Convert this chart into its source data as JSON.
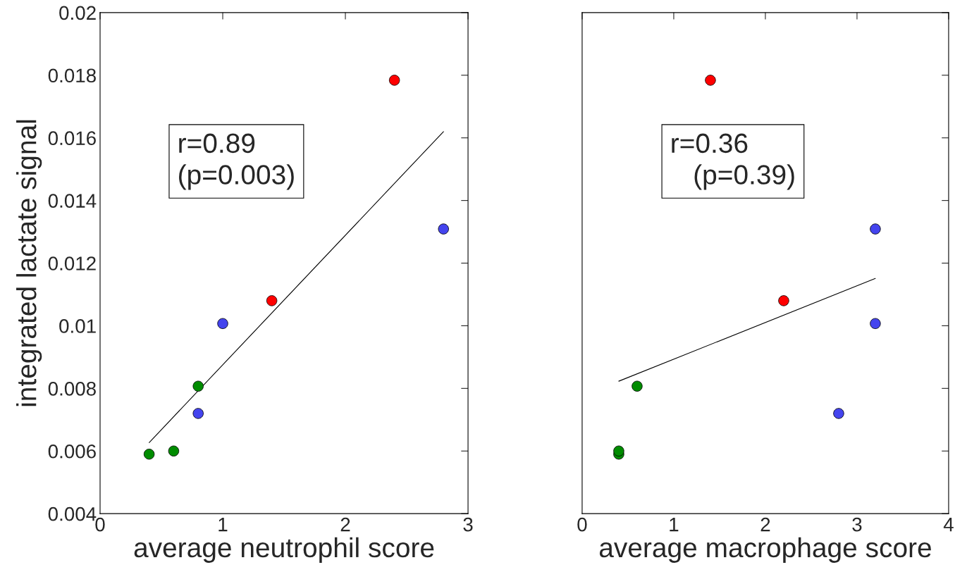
{
  "chart_data": [
    {
      "type": "scatter",
      "xlabel": "average neutrophil score",
      "ylabel": "integrated lactate signal",
      "xlim": [
        0,
        3
      ],
      "xticks": [
        0,
        1,
        2,
        3
      ],
      "ylim": [
        0.004,
        0.02
      ],
      "yticks": [
        0.004,
        0.006,
        0.008,
        0.01,
        0.012,
        0.014,
        0.016,
        0.018,
        0.02
      ],
      "marker": "circle",
      "grid": false,
      "annotations": [
        "r=0.89\n(p=0.003)"
      ],
      "series": [
        {
          "color": "#008c00",
          "x": [
            0.4,
            0.6,
            0.8
          ],
          "values": [
            0.0059,
            0.006,
            0.00807
          ]
        },
        {
          "color": "#4444ee",
          "x": [
            0.8,
            1.0,
            2.8
          ],
          "values": [
            0.0072,
            0.01007,
            0.01309
          ]
        },
        {
          "color": "#ff0000",
          "x": [
            1.4,
            2.4
          ],
          "values": [
            0.0108,
            0.01784
          ]
        },
        {
          "type": "line",
          "marker": "none",
          "color": "#000000",
          "x": [
            0.4,
            2.8
          ],
          "values": [
            0.00627,
            0.0162
          ]
        }
      ]
    },
    {
      "type": "scatter",
      "xlabel": "average macrophage score",
      "xlim": [
        0,
        4
      ],
      "xticks": [
        0,
        1,
        2,
        3,
        4
      ],
      "ylim": [
        0.004,
        0.02
      ],
      "yticks": [
        0.004,
        0.006,
        0.008,
        0.01,
        0.012,
        0.014,
        0.016,
        0.018,
        0.02
      ],
      "tick_labels": "x",
      "marker": "circle",
      "grid": false,
      "annotations": [
        "r=0.36\n   (p=0.39)"
      ],
      "series": [
        {
          "color": "#008c00",
          "x": [
            0.4,
            0.4,
            0.6
          ],
          "values": [
            0.0059,
            0.006,
            0.00807
          ]
        },
        {
          "color": "#4444ee",
          "x": [
            2.8,
            3.2,
            3.2
          ],
          "values": [
            0.0072,
            0.01007,
            0.01309
          ]
        },
        {
          "color": "#ff0000",
          "x": [
            2.2,
            1.4
          ],
          "values": [
            0.0108,
            0.01784
          ]
        },
        {
          "type": "line",
          "marker": "none",
          "color": "#000000",
          "x": [
            0.4,
            3.2
          ],
          "values": [
            0.00823,
            0.01151
          ]
        }
      ]
    }
  ]
}
